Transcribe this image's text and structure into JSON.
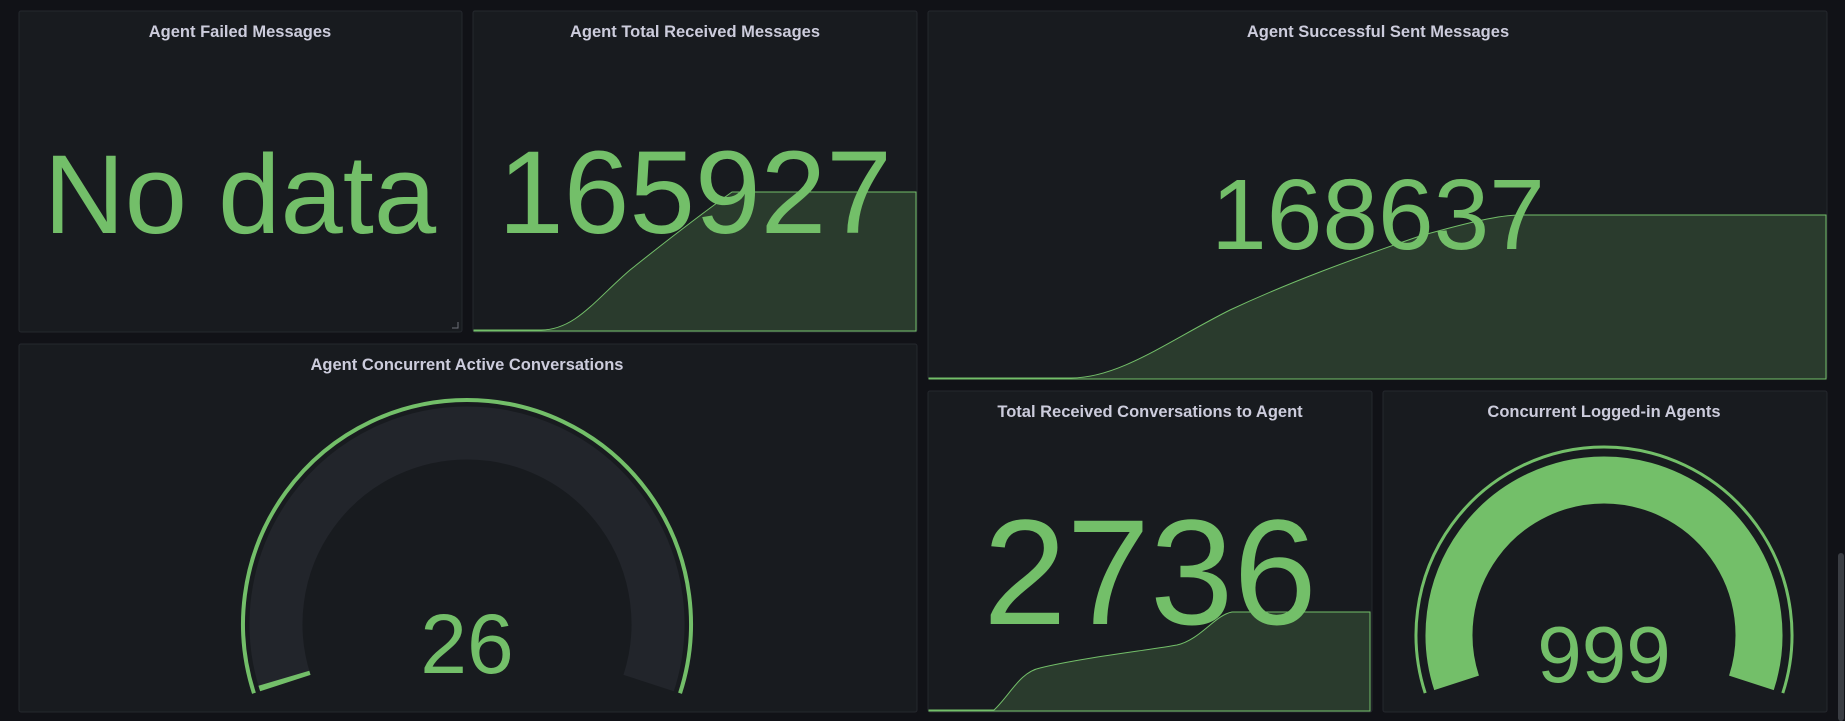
{
  "panels": [
    {
      "title": "Agent Failed Messages",
      "value": "No data"
    },
    {
      "title": "Agent Total Received Messages",
      "value": 165927
    },
    {
      "title": "Agent Successful Sent Messages",
      "value": 168637
    },
    {
      "title": "Agent Concurrent Active Conversations",
      "value": 26
    },
    {
      "title": "Total Received Conversations to Agent",
      "value": 2736
    },
    {
      "title": "Concurrent Logged-in Agents",
      "value": 999
    }
  ]
}
